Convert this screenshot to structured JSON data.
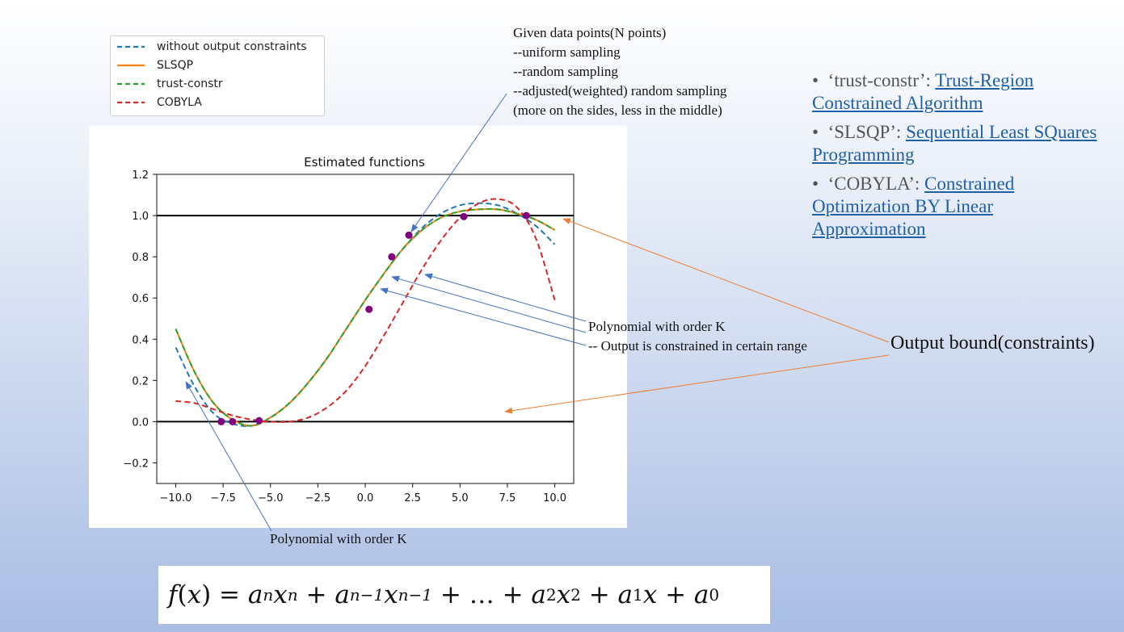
{
  "legend": {
    "items": [
      {
        "label": "without output constraints",
        "color": "#1f77b4",
        "dash": "dashed"
      },
      {
        "label": "SLSQP",
        "color": "#ff7f0e",
        "dash": "solid"
      },
      {
        "label": "trust-constr",
        "color": "#2ca02c",
        "dash": "dashed"
      },
      {
        "label": "COBYLA",
        "color": "#d62728",
        "dash": "dashed"
      }
    ]
  },
  "chart_data": {
    "type": "line",
    "title": "Estimated functions",
    "xlabel": "",
    "ylabel": "",
    "xlim": [
      -11,
      11
    ],
    "ylim": [
      -0.3,
      1.2
    ],
    "xticks": [
      -10.0,
      -7.5,
      -5.0,
      -2.5,
      0.0,
      2.5,
      5.0,
      7.5,
      10.0
    ],
    "xtick_labels": [
      "−10.0",
      "−7.5",
      "−5.0",
      "−2.5",
      "0.0",
      "2.5",
      "5.0",
      "7.5",
      "10.0"
    ],
    "yticks": [
      -0.2,
      0.0,
      0.2,
      0.4,
      0.6,
      0.8,
      1.0,
      1.2
    ],
    "ytick_labels": [
      "−0.2",
      "0.0",
      "0.2",
      "0.4",
      "0.6",
      "0.8",
      "1.0",
      "1.2"
    ],
    "grid": false,
    "hlines": [
      0.0,
      1.0
    ],
    "x": [
      -10,
      -9,
      -8,
      -7,
      -6,
      -5,
      -4,
      -3,
      -2,
      -1,
      0,
      1,
      2,
      3,
      4,
      5,
      6,
      7,
      8,
      9,
      10
    ],
    "series": [
      {
        "name": "without output constraints",
        "color": "#1f77b4",
        "dash": "dashed",
        "values": [
          0.36,
          0.17,
          0.04,
          -0.01,
          -0.02,
          0.02,
          0.09,
          0.19,
          0.31,
          0.45,
          0.59,
          0.72,
          0.84,
          0.94,
          1.01,
          1.05,
          1.06,
          1.05,
          1.01,
          0.95,
          0.86
        ]
      },
      {
        "name": "SLSQP",
        "color": "#ff7f0e",
        "dash": "solid",
        "values": [
          0.45,
          0.24,
          0.09,
          0.01,
          -0.02,
          0.02,
          0.09,
          0.19,
          0.31,
          0.45,
          0.59,
          0.72,
          0.84,
          0.93,
          0.99,
          1.02,
          1.03,
          1.03,
          1.01,
          0.98,
          0.93
        ]
      },
      {
        "name": "trust-constr",
        "color": "#2ca02c",
        "dash": "dashed",
        "values": [
          0.45,
          0.24,
          0.09,
          0.01,
          -0.02,
          0.02,
          0.09,
          0.19,
          0.31,
          0.45,
          0.59,
          0.72,
          0.84,
          0.93,
          0.99,
          1.02,
          1.03,
          1.03,
          1.01,
          0.98,
          0.93
        ]
      },
      {
        "name": "COBYLA",
        "color": "#d62728",
        "dash": "dashed",
        "values": [
          0.1,
          0.09,
          0.06,
          0.03,
          0.01,
          0.0,
          0.0,
          0.02,
          0.07,
          0.15,
          0.27,
          0.42,
          0.58,
          0.74,
          0.88,
          0.99,
          1.06,
          1.08,
          1.04,
          0.89,
          0.59
        ]
      }
    ],
    "points": {
      "color": "#800080",
      "x": [
        -7.6,
        -7.0,
        -5.6,
        0.2,
        1.4,
        2.3,
        5.2,
        8.5
      ],
      "y": [
        0.0,
        0.0,
        0.005,
        0.545,
        0.8,
        0.905,
        0.995,
        1.0
      ]
    }
  },
  "notes": {
    "given": [
      "Given data points(N points)",
      "--uniform sampling",
      "--random sampling",
      "--adjusted(weighted) random sampling",
      "(more on the sides, less in the middle)"
    ],
    "poly_constrained": [
      "Polynomial with order K",
      "-- Output is constrained in certain range"
    ],
    "poly_bottom": "Polynomial with order K",
    "output_bound": "Output bound(constraints)"
  },
  "bullets": [
    {
      "name": "‘trust-constr’:",
      "link": "Trust-Region Constrained Algorithm"
    },
    {
      "name": "‘SLSQP’:",
      "link": "Sequential Least SQuares Programming"
    },
    {
      "name": "‘COBYLA’:",
      "link": "Constrained Optimization BY Linear Approximation "
    }
  ],
  "formula": {
    "f": "f",
    "x": "x",
    "eq": " = ",
    "a": "a",
    "n": "n",
    "nm1": "n−1",
    "plus": " + ",
    "dots": "…",
    "two": "2",
    "one": "1",
    "zero": "0",
    "lp": "(",
    "rp": ")"
  },
  "colors": {
    "annotation_blue": "#4472c4",
    "annotation_orange": "#ed7d31"
  }
}
